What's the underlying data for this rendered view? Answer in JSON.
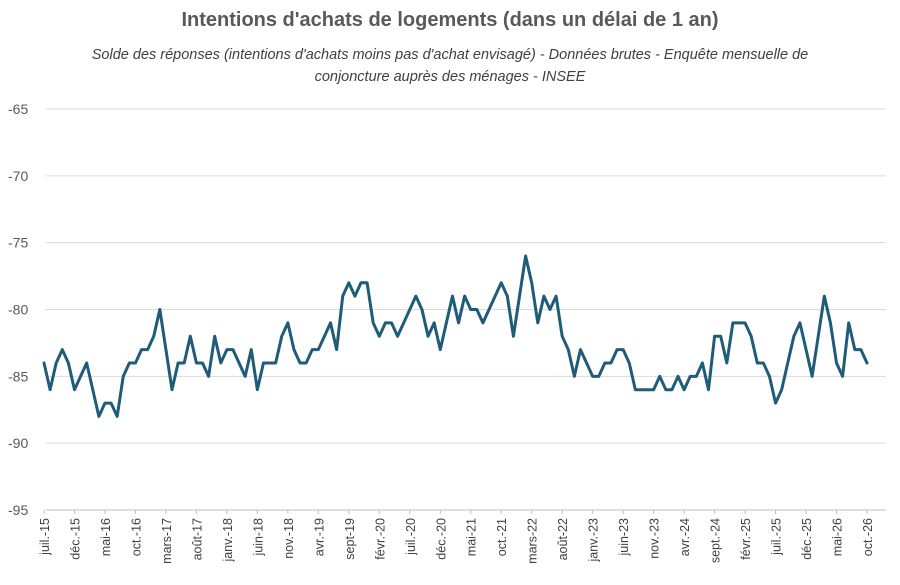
{
  "chart_data": {
    "type": "line",
    "title": "Intentions d'achats de logements (dans un délai de 1 an)",
    "subtitle": "Solde des réponses (intentions d'achats moins pas d'achat envisagé) - Données brutes - Enquête mensuelle de conjoncture auprès des ménages - INSEE",
    "xlabel": "",
    "ylabel": "",
    "ylim": [
      -95,
      -65
    ],
    "yticks": [
      -65,
      -70,
      -75,
      -80,
      -85,
      -90,
      -95
    ],
    "xticks": [
      "juil.-15",
      "déc.-15",
      "mai-16",
      "oct.-16",
      "mars-17",
      "août-17",
      "janv.-18",
      "juin-18",
      "nov.-18",
      "avr.-19",
      "sept-19",
      "févr.-20",
      "juil.-20",
      "déc.-20",
      "mai-21",
      "oct.-21",
      "mars-22",
      "août-22",
      "janv.-23",
      "juin-23",
      "nov.-23",
      "avr.-24",
      "sept.-24",
      "févr.-25",
      "juil.-25",
      "déc.-25",
      "mai-26",
      "oct.-26"
    ],
    "grid": true,
    "legend": "none",
    "line_color": "#1f5c7a",
    "series": [
      {
        "values": [
          -84,
          -86,
          -84,
          -83,
          -84,
          -86,
          -85,
          -84,
          -86,
          -88,
          -87,
          -87,
          -88,
          -85,
          -84,
          -84,
          -83,
          -83,
          -82,
          -80,
          -83,
          -86,
          -84,
          -84,
          -82,
          -84,
          -84,
          -85,
          -82,
          -84,
          -83,
          -83,
          -84,
          -85,
          -83,
          -86,
          -84,
          -84,
          -84,
          -82,
          -81,
          -83,
          -84,
          -84,
          -83,
          -83,
          -82,
          -81,
          -83,
          -79,
          -78,
          -79,
          -78,
          -78,
          -81,
          -82,
          -81,
          -81,
          -82,
          -81,
          -80,
          -79,
          -80,
          -82,
          -81,
          -83,
          -81,
          -79,
          -81,
          -79,
          -80,
          -80,
          -81,
          -80,
          -79,
          -78,
          -79,
          -82,
          -79,
          -76,
          -78,
          -81,
          -79,
          -80,
          -79,
          -82,
          -83,
          -85,
          -83,
          -84,
          -85,
          -85,
          -84,
          -84,
          -83,
          -83,
          -84,
          -86,
          -86,
          -86,
          -86,
          -85,
          -86,
          -86,
          -85,
          -86,
          -85,
          -85,
          -84,
          -86,
          -82,
          -82,
          -84,
          -81,
          -81,
          -81,
          -82,
          -84,
          -84,
          -85,
          -87,
          -86,
          -84,
          -82,
          -81,
          -83,
          -85,
          -82,
          -79,
          -81,
          -84,
          -85,
          -81,
          -83,
          -83,
          -84
        ]
      }
    ]
  }
}
